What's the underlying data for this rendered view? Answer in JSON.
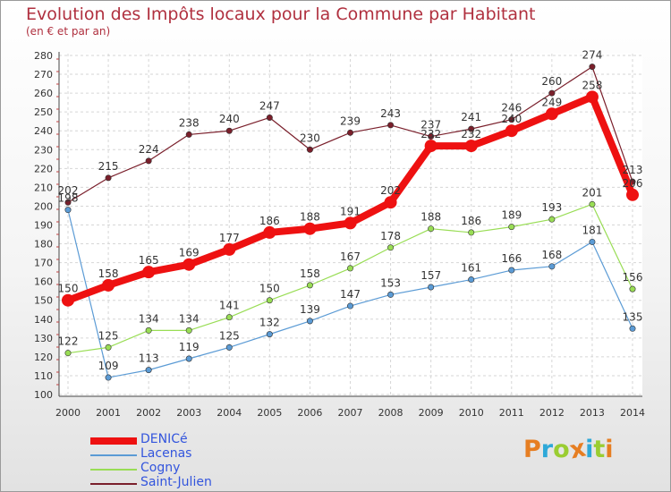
{
  "title": "Evolution des Impôts locaux pour la Commune par Habitant",
  "subtitle": "(en € et par an)",
  "logo_text": "Proxiti",
  "logo_colors": [
    "#e67e22",
    "#2ea8d8",
    "#9acd32",
    "#e67e22",
    "#2ea8d8",
    "#9acd32",
    "#e67e22"
  ],
  "chart_data": {
    "type": "line",
    "x": [
      2000,
      2001,
      2002,
      2003,
      2004,
      2005,
      2006,
      2007,
      2008,
      2009,
      2010,
      2011,
      2012,
      2013,
      2014
    ],
    "ylim": [
      100,
      280
    ],
    "yticks": [
      100,
      110,
      120,
      130,
      140,
      150,
      160,
      170,
      180,
      190,
      200,
      210,
      220,
      230,
      240,
      250,
      260,
      270,
      280
    ],
    "grid": true,
    "legend_position": "bottom-left",
    "series": [
      {
        "name": "DENICé",
        "color": "#ee1111",
        "values": [
          150,
          158,
          165,
          169,
          177,
          186,
          188,
          191,
          202,
          232,
          232,
          240,
          249,
          258,
          206
        ]
      },
      {
        "name": "Lacenas",
        "color": "#5b9bd5",
        "values": [
          198,
          109,
          113,
          119,
          125,
          132,
          139,
          147,
          153,
          157,
          161,
          166,
          168,
          181,
          135
        ]
      },
      {
        "name": "Cogny",
        "color": "#99dd55",
        "values": [
          122,
          125,
          134,
          134,
          141,
          150,
          158,
          167,
          178,
          188,
          186,
          189,
          193,
          201,
          156
        ]
      },
      {
        "name": "Saint-Julien",
        "color": "#7a1f2b",
        "values": [
          202,
          215,
          224,
          238,
          240,
          247,
          230,
          239,
          243,
          237,
          241,
          246,
          260,
          274,
          213
        ]
      }
    ]
  }
}
